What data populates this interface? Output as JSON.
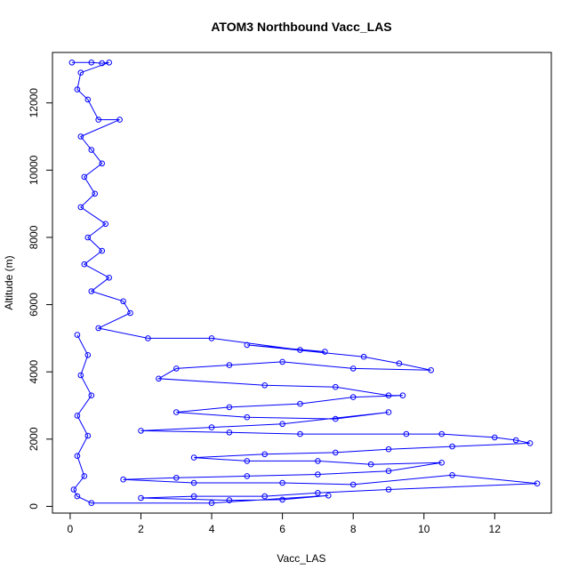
{
  "chart_data": {
    "type": "scatter",
    "title": "ATOM3 Northbound Vacc_LAS",
    "xlabel": "Vacc_LAS",
    "ylabel": "Altitude (m)",
    "xlim": [
      -0.5,
      13.6
    ],
    "ylim": [
      -200,
      13500
    ],
    "x_ticks": [
      0,
      2,
      4,
      6,
      8,
      10,
      12
    ],
    "y_ticks": [
      0,
      2000,
      4000,
      6000,
      8000,
      10000,
      12000
    ],
    "grid": false,
    "legend": "none",
    "series_color": "#0000ff",
    "marker": "open-circle",
    "connected": true,
    "series": [
      {
        "points": [
          [
            0.05,
            13200
          ],
          [
            0.6,
            13200
          ],
          [
            0.9,
            13180
          ],
          [
            1.1,
            13200
          ],
          [
            0.3,
            12900
          ],
          [
            0.2,
            12400
          ],
          [
            0.5,
            12100
          ],
          [
            0.8,
            11500
          ],
          [
            1.4,
            11500
          ],
          [
            0.3,
            11000
          ],
          [
            0.6,
            10600
          ],
          [
            0.9,
            10200
          ],
          [
            0.4,
            9800
          ],
          [
            0.7,
            9300
          ],
          [
            0.3,
            8900
          ],
          [
            1.0,
            8400
          ],
          [
            0.5,
            8000
          ],
          [
            0.9,
            7600
          ],
          [
            0.4,
            7200
          ],
          [
            1.1,
            6800
          ],
          [
            0.6,
            6400
          ],
          [
            1.5,
            6100
          ],
          [
            1.7,
            5750
          ],
          [
            0.8,
            5300
          ],
          [
            2.2,
            5000
          ],
          [
            4.0,
            5000
          ],
          [
            6.5,
            4650
          ],
          [
            7.2,
            4600
          ],
          [
            5.0,
            4800
          ],
          [
            8.3,
            4450
          ],
          [
            9.3,
            4250
          ],
          [
            10.2,
            4050
          ],
          [
            8.0,
            4100
          ],
          [
            6.0,
            4300
          ],
          [
            4.5,
            4200
          ],
          [
            3.0,
            4100
          ],
          [
            2.5,
            3800
          ],
          [
            5.5,
            3600
          ],
          [
            7.5,
            3550
          ],
          [
            9.0,
            3300
          ],
          [
            9.4,
            3300
          ],
          [
            8.0,
            3250
          ],
          [
            6.5,
            3050
          ],
          [
            4.5,
            2950
          ],
          [
            3.0,
            2800
          ],
          [
            5.0,
            2650
          ],
          [
            7.5,
            2600
          ],
          [
            9.0,
            2800
          ],
          [
            6.0,
            2450
          ],
          [
            4.0,
            2350
          ],
          [
            2.0,
            2250
          ],
          [
            4.5,
            2200
          ],
          [
            6.5,
            2150
          ],
          [
            9.5,
            2150
          ],
          [
            10.5,
            2150
          ],
          [
            12.0,
            2050
          ],
          [
            12.6,
            1970
          ],
          [
            13.0,
            1880
          ],
          [
            10.8,
            1780
          ],
          [
            9.0,
            1700
          ],
          [
            7.5,
            1600
          ],
          [
            5.5,
            1550
          ],
          [
            3.5,
            1450
          ],
          [
            5.0,
            1350
          ],
          [
            7.0,
            1350
          ],
          [
            8.5,
            1250
          ],
          [
            10.5,
            1300
          ],
          [
            9.0,
            1050
          ],
          [
            7.0,
            950
          ],
          [
            5.0,
            900
          ],
          [
            3.0,
            850
          ],
          [
            1.5,
            800
          ],
          [
            3.5,
            700
          ],
          [
            6.0,
            700
          ],
          [
            8.0,
            650
          ],
          [
            10.8,
            930
          ],
          [
            13.2,
            680
          ],
          [
            9.0,
            500
          ],
          [
            7.0,
            400
          ],
          [
            5.5,
            300
          ],
          [
            3.5,
            300
          ],
          [
            2.0,
            250
          ],
          [
            4.5,
            180
          ],
          [
            6.0,
            200
          ],
          [
            7.3,
            320
          ],
          [
            4.0,
            100
          ],
          [
            0.6,
            100
          ],
          [
            0.2,
            300
          ],
          [
            0.1,
            500
          ],
          [
            0.4,
            900
          ],
          [
            0.2,
            1500
          ],
          [
            0.5,
            2100
          ],
          [
            0.2,
            2700
          ],
          [
            0.6,
            3300
          ],
          [
            0.3,
            3900
          ],
          [
            0.5,
            4500
          ],
          [
            0.2,
            5100
          ]
        ]
      }
    ]
  }
}
